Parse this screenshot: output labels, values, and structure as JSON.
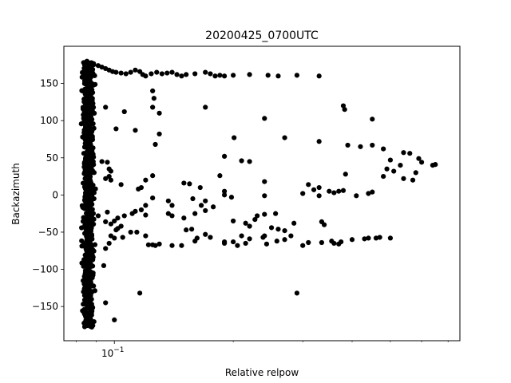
{
  "chart_data": {
    "type": "scatter",
    "title": "20200425_0700UTC",
    "xlabel": "Relative relpow",
    "ylabel": "Backazimuth",
    "xscale": "log",
    "xlim": [
      0.0745,
      0.75
    ],
    "ylim": [
      -196,
      200
    ],
    "x_major_ticks": [
      {
        "value": 0.1,
        "label": "10",
        "exponent": "−1"
      }
    ],
    "x_minor_ticks": [
      0.08,
      0.09,
      0.2,
      0.3,
      0.4,
      0.5,
      0.6,
      0.7
    ],
    "y_ticks": [
      {
        "value": 150,
        "label": "150"
      },
      {
        "value": 100,
        "label": "100"
      },
      {
        "value": 50,
        "label": "50"
      },
      {
        "value": 0,
        "label": "0"
      },
      {
        "value": -50,
        "label": "−50"
      },
      {
        "value": -100,
        "label": "−100"
      },
      {
        "value": -150,
        "label": "−150"
      }
    ],
    "grid": false,
    "marker_color": "#000000",
    "band_seed": 7,
    "band_points": 850,
    "band_x_range": [
      0.082,
      0.09
    ],
    "band_y_range": [
      -178,
      180
    ],
    "points": [
      [
        0.086,
        178
      ],
      [
        0.088,
        176
      ],
      [
        0.091,
        174
      ],
      [
        0.093,
        172
      ],
      [
        0.095,
        170
      ],
      [
        0.097,
        168
      ],
      [
        0.099,
        166
      ],
      [
        0.101,
        165
      ],
      [
        0.104,
        164
      ],
      [
        0.107,
        163
      ],
      [
        0.11,
        165
      ],
      [
        0.113,
        168
      ],
      [
        0.116,
        166
      ],
      [
        0.118,
        162
      ],
      [
        0.12,
        160
      ],
      [
        0.124,
        163
      ],
      [
        0.128,
        165
      ],
      [
        0.132,
        163
      ],
      [
        0.136,
        164
      ],
      [
        0.14,
        165
      ],
      [
        0.144,
        162
      ],
      [
        0.148,
        160
      ],
      [
        0.152,
        162
      ],
      [
        0.16,
        163
      ],
      [
        0.17,
        165
      ],
      [
        0.175,
        163
      ],
      [
        0.18,
        160
      ],
      [
        0.185,
        161
      ],
      [
        0.19,
        160
      ],
      [
        0.2,
        161
      ],
      [
        0.22,
        162
      ],
      [
        0.245,
        161
      ],
      [
        0.26,
        160
      ],
      [
        0.29,
        161
      ],
      [
        0.33,
        160
      ],
      [
        0.125,
        140
      ],
      [
        0.126,
        130
      ],
      [
        0.125,
        118
      ],
      [
        0.13,
        110
      ],
      [
        0.17,
        118
      ],
      [
        0.24,
        103
      ],
      [
        0.38,
        120
      ],
      [
        0.383,
        115
      ],
      [
        0.45,
        102
      ],
      [
        0.095,
        118
      ],
      [
        0.106,
        112
      ],
      [
        0.101,
        89
      ],
      [
        0.113,
        87
      ],
      [
        0.13,
        82
      ],
      [
        0.127,
        68
      ],
      [
        0.201,
        77
      ],
      [
        0.27,
        77
      ],
      [
        0.33,
        72
      ],
      [
        0.39,
        67
      ],
      [
        0.42,
        65
      ],
      [
        0.45,
        67
      ],
      [
        0.48,
        62
      ],
      [
        0.19,
        52
      ],
      [
        0.21,
        46
      ],
      [
        0.22,
        45
      ],
      [
        0.54,
        57
      ],
      [
        0.56,
        56
      ],
      [
        0.59,
        49
      ],
      [
        0.6,
        44
      ],
      [
        0.65,
        41
      ],
      [
        0.64,
        40
      ],
      [
        0.5,
        47
      ],
      [
        0.53,
        40
      ],
      [
        0.49,
        35
      ],
      [
        0.51,
        32
      ],
      [
        0.48,
        25
      ],
      [
        0.54,
        22
      ],
      [
        0.57,
        20
      ],
      [
        0.58,
        30
      ],
      [
        0.093,
        45
      ],
      [
        0.096,
        44
      ],
      [
        0.097,
        35
      ],
      [
        0.098,
        32
      ],
      [
        0.097,
        25
      ],
      [
        0.095,
        22
      ],
      [
        0.098,
        20
      ],
      [
        0.104,
        14
      ],
      [
        0.115,
        8
      ],
      [
        0.117,
        10
      ],
      [
        0.12,
        20
      ],
      [
        0.125,
        26
      ],
      [
        0.15,
        16
      ],
      [
        0.155,
        15
      ],
      [
        0.165,
        10
      ],
      [
        0.185,
        26
      ],
      [
        0.24,
        18
      ],
      [
        0.31,
        14
      ],
      [
        0.33,
        10
      ],
      [
        0.37,
        5
      ],
      [
        0.385,
        28
      ],
      [
        0.35,
        5
      ],
      [
        0.32,
        7
      ],
      [
        0.3,
        2
      ],
      [
        0.33,
        -1
      ],
      [
        0.36,
        3
      ],
      [
        0.38,
        6
      ],
      [
        0.41,
        -1
      ],
      [
        0.44,
        2
      ],
      [
        0.45,
        4
      ],
      [
        0.24,
        -1
      ],
      [
        0.19,
        0
      ],
      [
        0.19,
        5
      ],
      [
        0.198,
        -3
      ],
      [
        0.17,
        -8
      ],
      [
        0.158,
        -5
      ],
      [
        0.166,
        -14
      ],
      [
        0.178,
        -16
      ],
      [
        0.17,
        -21
      ],
      [
        0.16,
        -25
      ],
      [
        0.15,
        -31
      ],
      [
        0.14,
        -28
      ],
      [
        0.137,
        -25
      ],
      [
        0.14,
        -14
      ],
      [
        0.137,
        -8
      ],
      [
        0.125,
        -4
      ],
      [
        0.12,
        -14
      ],
      [
        0.113,
        -22
      ],
      [
        0.117,
        -20
      ],
      [
        0.12,
        -27
      ],
      [
        0.111,
        -25
      ],
      [
        0.106,
        -28
      ],
      [
        0.102,
        -31
      ],
      [
        0.1,
        -35
      ],
      [
        0.096,
        -23
      ],
      [
        0.091,
        -28
      ],
      [
        0.095,
        -36
      ],
      [
        0.098,
        -39
      ],
      [
        0.102,
        -45
      ],
      [
        0.101,
        -47
      ],
      [
        0.104,
        -42
      ],
      [
        0.11,
        -50
      ],
      [
        0.114,
        -50
      ],
      [
        0.12,
        -55
      ],
      [
        0.122,
        -67
      ],
      [
        0.125,
        -67
      ],
      [
        0.127,
        -68
      ],
      [
        0.13,
        -66
      ],
      [
        0.14,
        -68
      ],
      [
        0.148,
        -68
      ],
      [
        0.16,
        -62
      ],
      [
        0.162,
        -58
      ],
      [
        0.17,
        -53
      ],
      [
        0.175,
        -57
      ],
      [
        0.152,
        -47
      ],
      [
        0.157,
        -46
      ],
      [
        0.19,
        -65
      ],
      [
        0.19,
        -63
      ],
      [
        0.2,
        -63
      ],
      [
        0.205,
        -68
      ],
      [
        0.215,
        -65
      ],
      [
        0.21,
        -55
      ],
      [
        0.22,
        -59
      ],
      [
        0.238,
        -57
      ],
      [
        0.24,
        -55
      ],
      [
        0.25,
        -44
      ],
      [
        0.26,
        -46
      ],
      [
        0.27,
        -48
      ],
      [
        0.22,
        -42
      ],
      [
        0.215,
        -38
      ],
      [
        0.2,
        -35
      ],
      [
        0.227,
        -33
      ],
      [
        0.23,
        -28
      ],
      [
        0.24,
        -26
      ],
      [
        0.256,
        -25
      ],
      [
        0.243,
        -66
      ],
      [
        0.258,
        -62
      ],
      [
        0.27,
        -60
      ],
      [
        0.28,
        -55
      ],
      [
        0.285,
        -38
      ],
      [
        0.3,
        -68
      ],
      [
        0.31,
        -64
      ],
      [
        0.335,
        -64
      ],
      [
        0.335,
        -36
      ],
      [
        0.34,
        -40
      ],
      [
        0.355,
        -62
      ],
      [
        0.36,
        -65
      ],
      [
        0.37,
        -66
      ],
      [
        0.375,
        -63
      ],
      [
        0.4,
        -60
      ],
      [
        0.43,
        -59
      ],
      [
        0.44,
        -58
      ],
      [
        0.46,
        -58
      ],
      [
        0.47,
        -57
      ],
      [
        0.5,
        -58
      ],
      [
        0.098,
        -55
      ],
      [
        0.1,
        -58
      ],
      [
        0.105,
        -57
      ],
      [
        0.097,
        -65
      ],
      [
        0.095,
        -72
      ],
      [
        0.094,
        -95
      ],
      [
        0.095,
        -145
      ],
      [
        0.1,
        -168
      ],
      [
        0.116,
        -132
      ],
      [
        0.29,
        -132
      ]
    ]
  }
}
